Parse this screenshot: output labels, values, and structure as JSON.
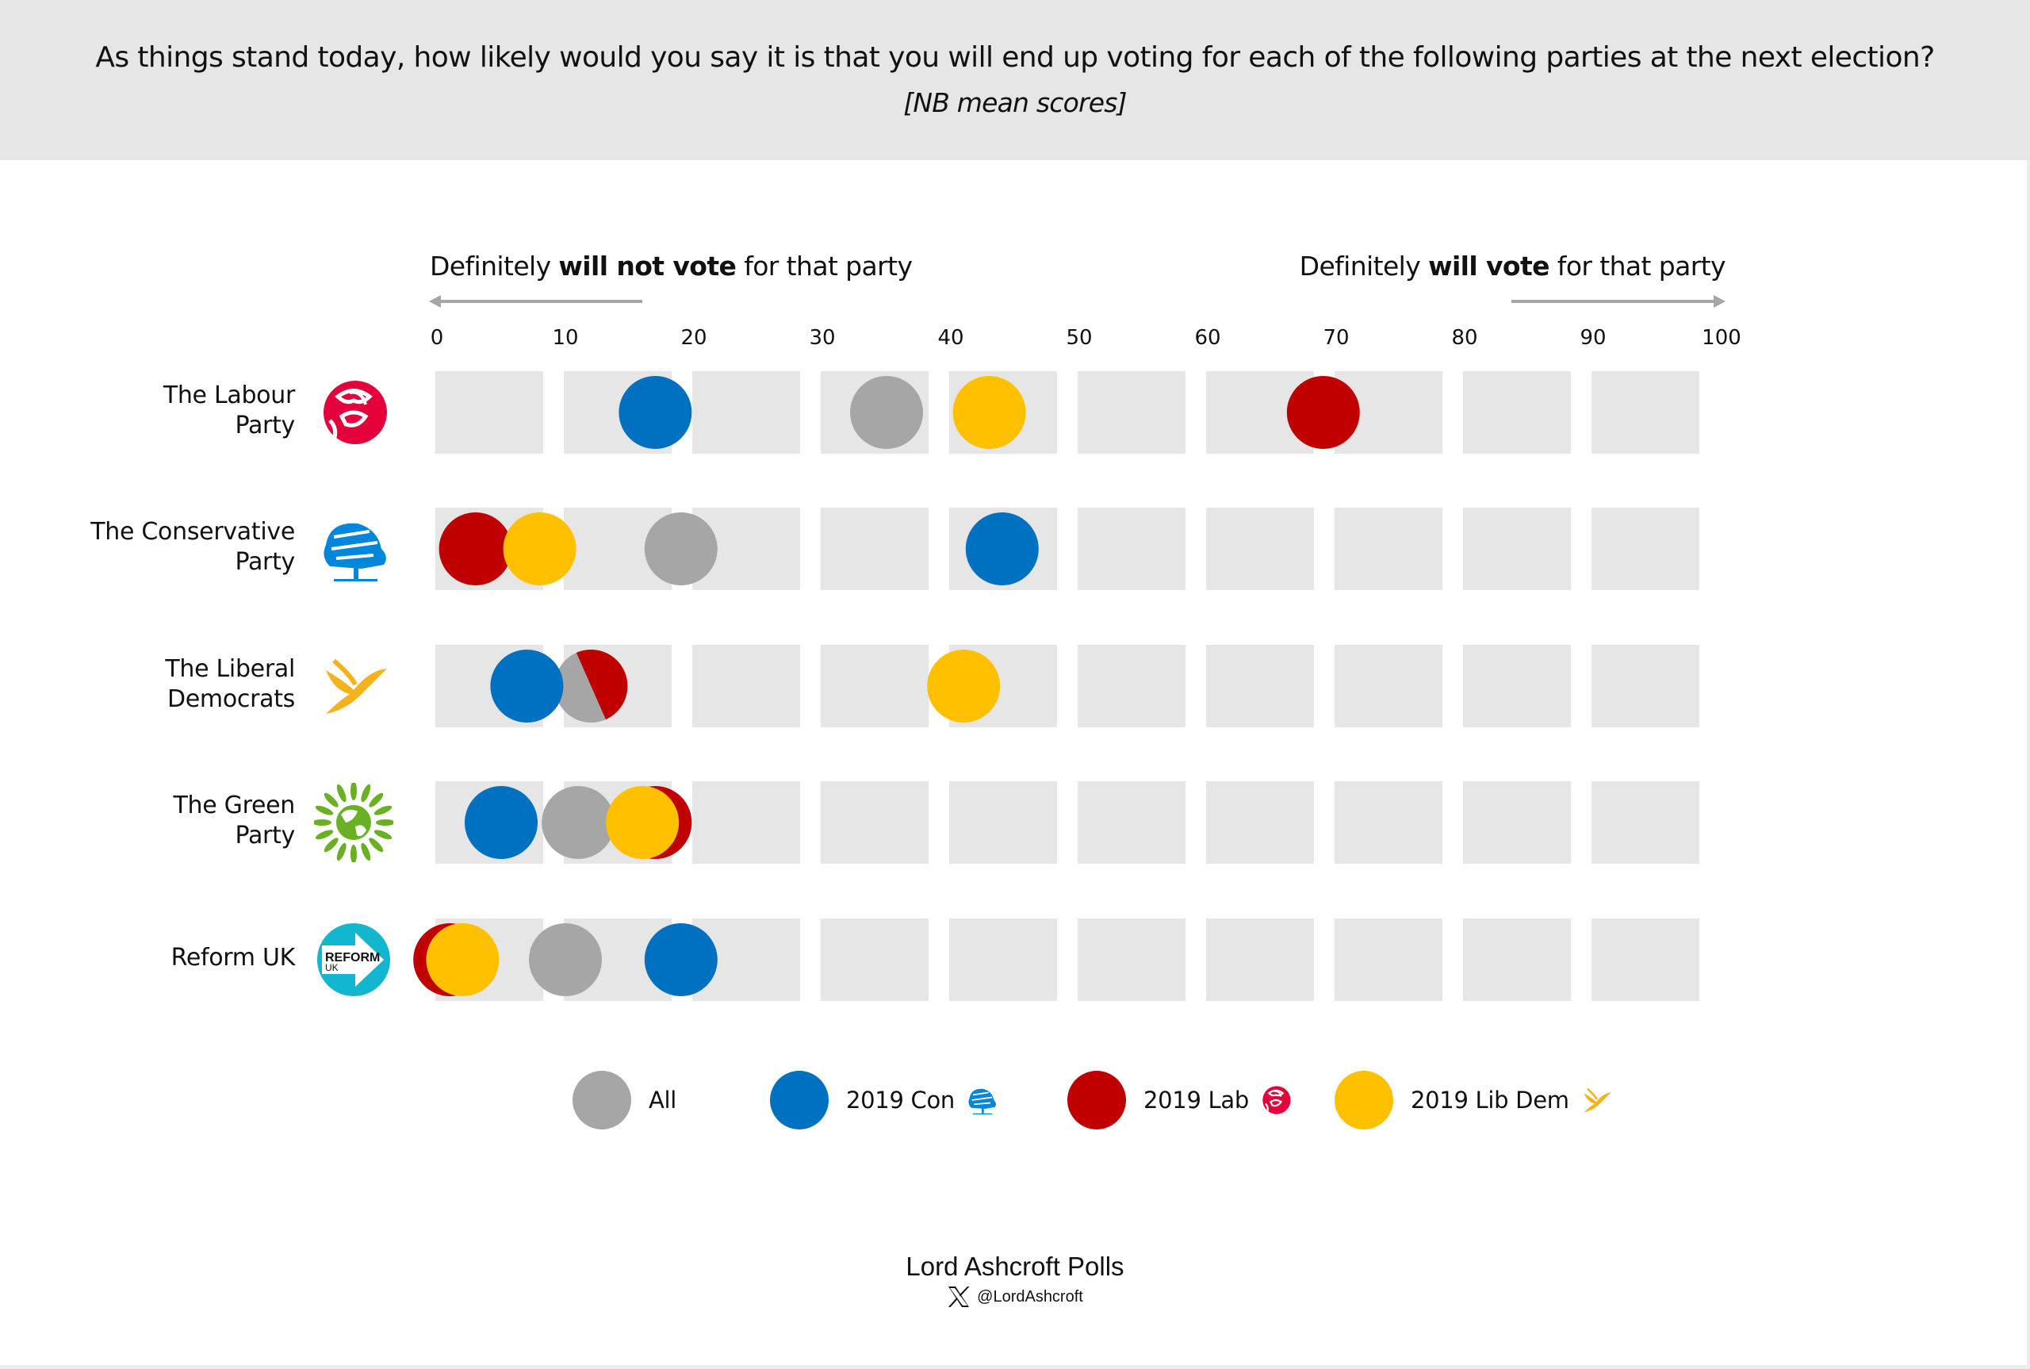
{
  "header": {
    "title": "As things stand today, how likely would you say it is that you will end up voting for each of the following parties at the next election?",
    "subtitle": "[NB mean scores]"
  },
  "scale_labels": {
    "left": {
      "prefix": "Definitely ",
      "bold": "will not vote",
      "suffix": " for that party"
    },
    "right": {
      "prefix": "Definitely ",
      "bold": "will vote",
      "suffix": " for that party"
    }
  },
  "colors": {
    "All": "#a6a6a6",
    "2019 Con": "#0070c0",
    "2019 Lab": "#c00000",
    "2019 Lib Dem": "#ffc000",
    "box": "#e7e6e6",
    "arrow": "#a6a6a6",
    "header_bg": "#e7e6e6"
  },
  "parties": [
    {
      "name": "The Labour Party",
      "lines": [
        "The Labour",
        "Party"
      ],
      "logo": "labour-rose-icon"
    },
    {
      "name": "The Conservative Party",
      "lines": [
        "The Conservative",
        "Party"
      ],
      "logo": "conservative-tree-icon"
    },
    {
      "name": "The Liberal Democrats",
      "lines": [
        "The Liberal",
        "Democrats"
      ],
      "logo": "libdem-bird-icon"
    },
    {
      "name": "The Green Party",
      "lines": [
        "The Green",
        "Party"
      ],
      "logo": "green-earth-icon"
    },
    {
      "name": "Reform UK",
      "lines": [
        "Reform UK"
      ],
      "logo": "reform-arrow-icon",
      "logo_text": [
        "REFORM",
        "UK"
      ]
    }
  ],
  "legend": [
    {
      "label": "All",
      "key": "All",
      "logo": null
    },
    {
      "label": "2019 Con",
      "key": "2019 Con",
      "logo": "conservative-tree-icon"
    },
    {
      "label": "2019 Lab",
      "key": "2019 Lab",
      "logo": "labour-rose-icon"
    },
    {
      "label": "2019 Lib Dem",
      "key": "2019 Lib Dem",
      "logo": "libdem-bird-icon"
    }
  ],
  "footer": {
    "brand": "Lord Ashcroft Polls",
    "handle": "@LordAshcroft",
    "social_icon": "x-logo-icon"
  },
  "chart_data": {
    "type": "scatter",
    "title": "As things stand today, how likely would you say it is that you will end up voting for each of the following parties at the next election?",
    "subtitle": "[NB mean scores]",
    "xlabel_left": "Definitely will not vote for that party",
    "xlabel_right": "Definitely will vote for that party",
    "xlim": [
      0,
      100
    ],
    "x_ticks": [
      0,
      10,
      20,
      30,
      40,
      50,
      60,
      70,
      80,
      90,
      100
    ],
    "categories": [
      "The Labour Party",
      "The Conservative Party",
      "The Liberal Democrats",
      "The Green Party",
      "Reform UK"
    ],
    "series": [
      {
        "name": "All",
        "values": [
          35,
          19,
          12,
          11,
          10
        ]
      },
      {
        "name": "2019 Con",
        "values": [
          17,
          44,
          7,
          5,
          19
        ]
      },
      {
        "name": "2019 Lab",
        "values": [
          69,
          3,
          12,
          17,
          1
        ]
      },
      {
        "name": "2019 Lib Dem",
        "values": [
          43,
          8,
          41,
          16,
          2
        ]
      }
    ],
    "legend_position": "bottom",
    "grid": false
  }
}
